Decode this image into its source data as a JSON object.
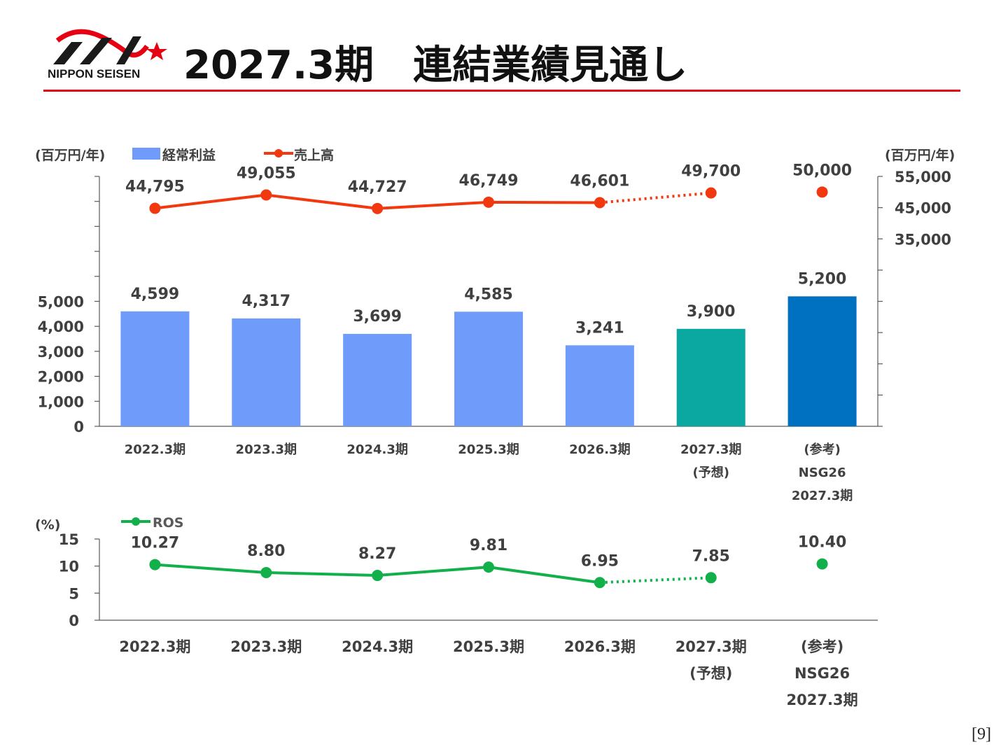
{
  "page": {
    "title": "2027.3期　連結業績見通し",
    "logo_text": "NIPPON SEISEN",
    "page_number": "[9]"
  },
  "colors": {
    "accent_red": "#e60012",
    "bar_actual": "#6f9bfb",
    "bar_forecast": "#0aa8a0",
    "bar_reference": "#0070c0",
    "sales_line": "#f2380f",
    "ros_line": "#12b04b",
    "text": "#404040"
  },
  "chart_data": [
    {
      "type": "bar",
      "categories": [
        [
          "2022.3期"
        ],
        [
          "2023.3期"
        ],
        [
          "2024.3期"
        ],
        [
          "2025.3期"
        ],
        [
          "2026.3期"
        ],
        [
          "2027.3期",
          "(予想)"
        ],
        [
          "(参考)",
          "NSG26",
          "2027.3期"
        ]
      ],
      "left_axis_unit": "(百万円/年)",
      "right_axis_unit": "(百万円/年)",
      "left_ticks": [
        "0",
        "1,000",
        "2,000",
        "3,000",
        "4,000",
        "5,000"
      ],
      "ylim_left": [
        0,
        10000
      ],
      "right_ticks": [
        "35,000",
        "45,000",
        "55,000"
      ],
      "ylim_right": [
        -25000,
        55000
      ],
      "legend": {
        "bar_label": "経常利益",
        "line_label": "売上高",
        "placement": "top-left"
      },
      "series": [
        {
          "name": "経常利益",
          "type": "bar",
          "values": [
            4599,
            4317,
            3699,
            4585,
            3241,
            3900,
            5200
          ],
          "labels": [
            "4,599",
            "4,317",
            "3,699",
            "4,585",
            "3,241",
            "3,900",
            "5,200"
          ],
          "styles": [
            "actual",
            "actual",
            "actual",
            "actual",
            "actual",
            "forecast",
            "reference"
          ]
        },
        {
          "name": "売上高",
          "type": "line",
          "values": [
            44795,
            49055,
            44727,
            46749,
            46601,
            49700,
            50000
          ],
          "labels": [
            "44,795",
            "49,055",
            "44,727",
            "46,749",
            "46,601",
            "49,700",
            "50,000"
          ],
          "styles": [
            "actual",
            "actual",
            "actual",
            "actual",
            "actual",
            "forecast",
            "reference"
          ]
        }
      ]
    },
    {
      "type": "line",
      "categories": [
        [
          "2022.3期"
        ],
        [
          "2023.3期"
        ],
        [
          "2024.3期"
        ],
        [
          "2025.3期"
        ],
        [
          "2026.3期"
        ],
        [
          "2027.3期",
          "(予想)"
        ],
        [
          "(参考)",
          "NSG26",
          "2027.3期"
        ]
      ],
      "axis_unit": "(%)",
      "y_ticks": [
        "0",
        "5",
        "10",
        "15"
      ],
      "ylim": [
        0,
        15
      ],
      "legend": {
        "line_label": "ROS",
        "placement": "top-left"
      },
      "series": [
        {
          "name": "ROS",
          "values": [
            10.27,
            8.8,
            8.27,
            9.81,
            6.95,
            7.85,
            10.4
          ],
          "labels": [
            "10.27",
            "8.80",
            "8.27",
            "9.81",
            "6.95",
            "7.85",
            "10.40"
          ],
          "styles": [
            "actual",
            "actual",
            "actual",
            "actual",
            "actual",
            "forecast",
            "reference"
          ]
        }
      ]
    }
  ]
}
